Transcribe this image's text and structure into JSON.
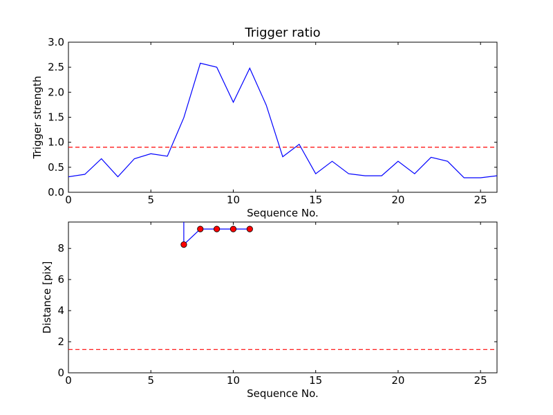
{
  "colors": {
    "line": "#0000ff",
    "threshold": "#ff0000",
    "marker_fill": "#ff0000",
    "background": "#ffffff",
    "axes": "#000000"
  },
  "chart_data": [
    {
      "type": "line",
      "title": "Trigger ratio",
      "xlabel": "Sequence No.",
      "ylabel": "Trigger strength",
      "xlim": [
        0,
        26
      ],
      "ylim": [
        0,
        3.0
      ],
      "xticks": [
        "0",
        "5",
        "10",
        "15",
        "20",
        "25"
      ],
      "yticks": [
        "0.0",
        "0.5",
        "1.0",
        "1.5",
        "2.0",
        "2.5",
        "3.0"
      ],
      "grid": false,
      "series": [
        {
          "style": "solid",
          "x": [
            0,
            1,
            2,
            3,
            4,
            5,
            6,
            7,
            8,
            9,
            10,
            11,
            12,
            13,
            14,
            15,
            16,
            17,
            18,
            19,
            20,
            21,
            22,
            23,
            24,
            25,
            26
          ],
          "y": [
            0.31,
            0.36,
            0.67,
            0.31,
            0.67,
            0.77,
            0.72,
            1.49,
            2.58,
            2.5,
            1.8,
            2.48,
            1.74,
            0.71,
            0.96,
            0.37,
            0.62,
            0.37,
            0.33,
            0.33,
            0.62,
            0.37,
            0.7,
            0.62,
            0.29,
            0.29,
            0.33
          ]
        }
      ],
      "threshold": {
        "y": 0.9,
        "style": "dashed"
      }
    },
    {
      "type": "line",
      "title": "",
      "xlabel": "Sequence No.",
      "ylabel": "Distance [pix]",
      "xlim": [
        0,
        26
      ],
      "ylim": [
        0,
        9.7
      ],
      "xticks": [
        "0",
        "5",
        "10",
        "15",
        "20",
        "25"
      ],
      "yticks": [
        "0",
        "2",
        "4",
        "6",
        "8"
      ],
      "grid": false,
      "series": [
        {
          "style": "solid-with-markers",
          "x": [
            7,
            7,
            8,
            9,
            10,
            11
          ],
          "y": [
            9.7,
            8.25,
            9.25,
            9.25,
            9.25,
            9.25
          ],
          "markers": [
            false,
            true,
            true,
            true,
            true,
            true
          ]
        }
      ],
      "threshold": {
        "y": 1.5,
        "style": "dashed"
      }
    }
  ]
}
